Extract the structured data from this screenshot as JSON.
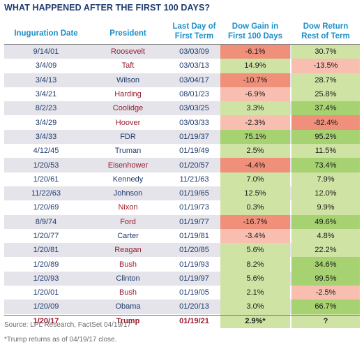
{
  "title": "WHAT HAPPENED AFTER THE FIRST 100 DAYS?",
  "headers": {
    "inauguration_date": "Inuguration Date",
    "president": "President",
    "last_day_line1": "Last Day of",
    "last_day_line2": "First Term",
    "dow_gain_line1": "Dow Gain in",
    "dow_gain_line2": "First 100 Days",
    "dow_return_line1": "Dow Return",
    "dow_return_line2": "Rest of Term"
  },
  "colors": {
    "header_text": "#1a8fc8",
    "title_text": "#1f3b6e",
    "republican_text": "#9b1c2e",
    "democrat_text": "#1f3b6e",
    "strong_negative": "#f0907a",
    "mild_negative": "#f8bfb0",
    "mild_positive": "#cfe3a4",
    "strong_positive": "#a7d271"
  },
  "rows": [
    {
      "date": "9/14/01",
      "president": "Roosevelt",
      "party": "rep",
      "last_day": "03/03/09",
      "gain": "-6.1%",
      "gain_tone": "strong_negative",
      "ret": "30.7%",
      "ret_tone": "mild_positive"
    },
    {
      "date": "3/4/09",
      "president": "Taft",
      "party": "rep",
      "last_day": "03/03/13",
      "gain": "14.9%",
      "gain_tone": "mild_positive",
      "ret": "-13.5%",
      "ret_tone": "mild_negative"
    },
    {
      "date": "3/4/13",
      "president": "Wilson",
      "party": "dem",
      "last_day": "03/04/17",
      "gain": "-10.7%",
      "gain_tone": "strong_negative",
      "ret": "28.7%",
      "ret_tone": "mild_positive"
    },
    {
      "date": "3/4/21",
      "president": "Harding",
      "party": "rep",
      "last_day": "08/01/23",
      "gain": "-6.9%",
      "gain_tone": "mild_negative",
      "ret": "25.8%",
      "ret_tone": "mild_positive"
    },
    {
      "date": "8/2/23",
      "president": "Coolidge",
      "party": "rep",
      "last_day": "03/03/25",
      "gain": "3.3%",
      "gain_tone": "mild_positive",
      "ret": "37.4%",
      "ret_tone": "strong_positive"
    },
    {
      "date": "3/4/29",
      "president": "Hoover",
      "party": "rep",
      "last_day": "03/03/33",
      "gain": "-2.3%",
      "gain_tone": "mild_negative",
      "ret": "-82.4%",
      "ret_tone": "strong_negative"
    },
    {
      "date": "3/4/33",
      "president": "FDR",
      "party": "dem",
      "last_day": "01/19/37",
      "gain": "75.1%",
      "gain_tone": "strong_positive",
      "ret": "95.2%",
      "ret_tone": "strong_positive"
    },
    {
      "date": "4/12/45",
      "president": "Truman",
      "party": "dem",
      "last_day": "01/19/49",
      "gain": "2.5%",
      "gain_tone": "mild_positive",
      "ret": "11.5%",
      "ret_tone": "mild_positive"
    },
    {
      "date": "1/20/53",
      "president": "Eisenhower",
      "party": "rep",
      "last_day": "01/20/57",
      "gain": "-4.4%",
      "gain_tone": "strong_negative",
      "ret": "73.4%",
      "ret_tone": "strong_positive"
    },
    {
      "date": "1/20/61",
      "president": "Kennedy",
      "party": "dem",
      "last_day": "11/21/63",
      "gain": "7.0%",
      "gain_tone": "mild_positive",
      "ret": "7.9%",
      "ret_tone": "mild_positive"
    },
    {
      "date": "11/22/63",
      "president": "Johnson",
      "party": "dem",
      "last_day": "01/19/65",
      "gain": "12.5%",
      "gain_tone": "mild_positive",
      "ret": "12.0%",
      "ret_tone": "mild_positive"
    },
    {
      "date": "1/20/69",
      "president": "Nixon",
      "party": "rep",
      "last_day": "01/19/73",
      "gain": "0.3%",
      "gain_tone": "mild_positive",
      "ret": "9.9%",
      "ret_tone": "mild_positive"
    },
    {
      "date": "8/9/74",
      "president": "Ford",
      "party": "rep",
      "last_day": "01/19/77",
      "gain": "-16.7%",
      "gain_tone": "strong_negative",
      "ret": "49.6%",
      "ret_tone": "strong_positive"
    },
    {
      "date": "1/20/77",
      "president": "Carter",
      "party": "dem",
      "last_day": "01/19/81",
      "gain": "-3.4%",
      "gain_tone": "mild_negative",
      "ret": "4.8%",
      "ret_tone": "mild_positive"
    },
    {
      "date": "1/20/81",
      "president": "Reagan",
      "party": "rep",
      "last_day": "01/20/85",
      "gain": "5.6%",
      "gain_tone": "mild_positive",
      "ret": "22.2%",
      "ret_tone": "mild_positive"
    },
    {
      "date": "1/20/89",
      "president": "Bush",
      "party": "rep",
      "last_day": "01/19/93",
      "gain": "8.2%",
      "gain_tone": "mild_positive",
      "ret": "34.6%",
      "ret_tone": "strong_positive"
    },
    {
      "date": "1/20/93",
      "president": "Clinton",
      "party": "dem",
      "last_day": "01/19/97",
      "gain": "5.6%",
      "gain_tone": "mild_positive",
      "ret": "99.5%",
      "ret_tone": "strong_positive"
    },
    {
      "date": "1/20/01",
      "president": "Bush",
      "party": "rep",
      "last_day": "01/19/05",
      "gain": "2.1%",
      "gain_tone": "mild_positive",
      "ret": "-2.5%",
      "ret_tone": "mild_negative"
    },
    {
      "date": "1/20/09",
      "president": "Obama",
      "party": "dem",
      "last_day": "01/20/13",
      "gain": "3.0%",
      "gain_tone": "mild_positive",
      "ret": "66.7%",
      "ret_tone": "strong_positive"
    },
    {
      "date": "1/20/17",
      "president": "Trump",
      "party": "rep",
      "last_day": "01/19/21",
      "gain": "2.9%*",
      "gain_tone": "mild_positive",
      "ret": "?",
      "ret_tone": "mild_positive"
    }
  ],
  "source": "Source: LPL Research, FactSet   04/19/17",
  "note": "*Trump returns as of 04/19/17 close."
}
